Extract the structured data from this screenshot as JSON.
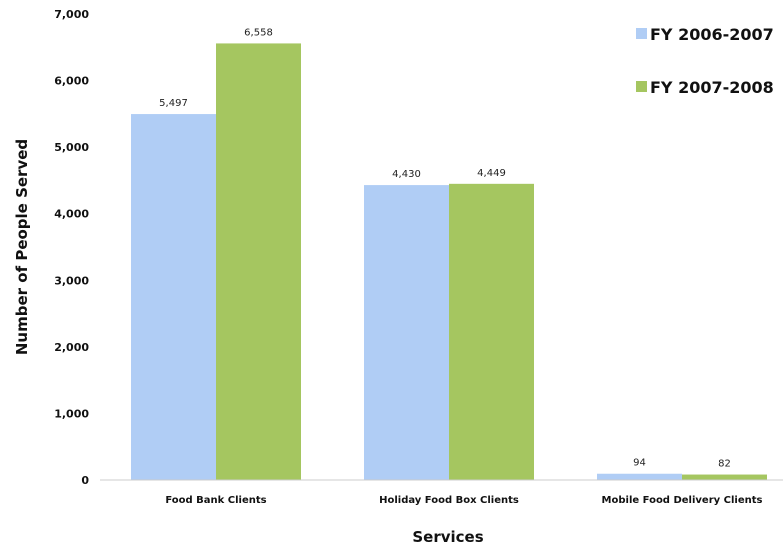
{
  "chart_data": {
    "type": "bar",
    "title": "",
    "xlabel": "Services",
    "ylabel": "Number of People Served",
    "categories": [
      "Food Bank Clients",
      "Holiday Food Box Clients",
      "Mobile Food Delivery Clients"
    ],
    "series": [
      {
        "name": "FY 2006-2007",
        "values": [
          5497,
          4430,
          94
        ],
        "labels": [
          "5,497",
          "4,430",
          "94"
        ],
        "color": "#b0cdf5"
      },
      {
        "name": "FY 2007-2008",
        "values": [
          6558,
          4449,
          82
        ],
        "labels": [
          "6,558",
          "4,449",
          "82"
        ],
        "color": "#a5c660"
      }
    ],
    "ylim": [
      0,
      7000
    ],
    "yticks": [
      0,
      1000,
      2000,
      3000,
      4000,
      5000,
      6000,
      7000
    ],
    "ytick_labels": [
      "0",
      "1,000",
      "2,000",
      "3,000",
      "4,000",
      "5,000",
      "6,000",
      "7,000"
    ],
    "grid": false,
    "legend_position": "top-right"
  }
}
